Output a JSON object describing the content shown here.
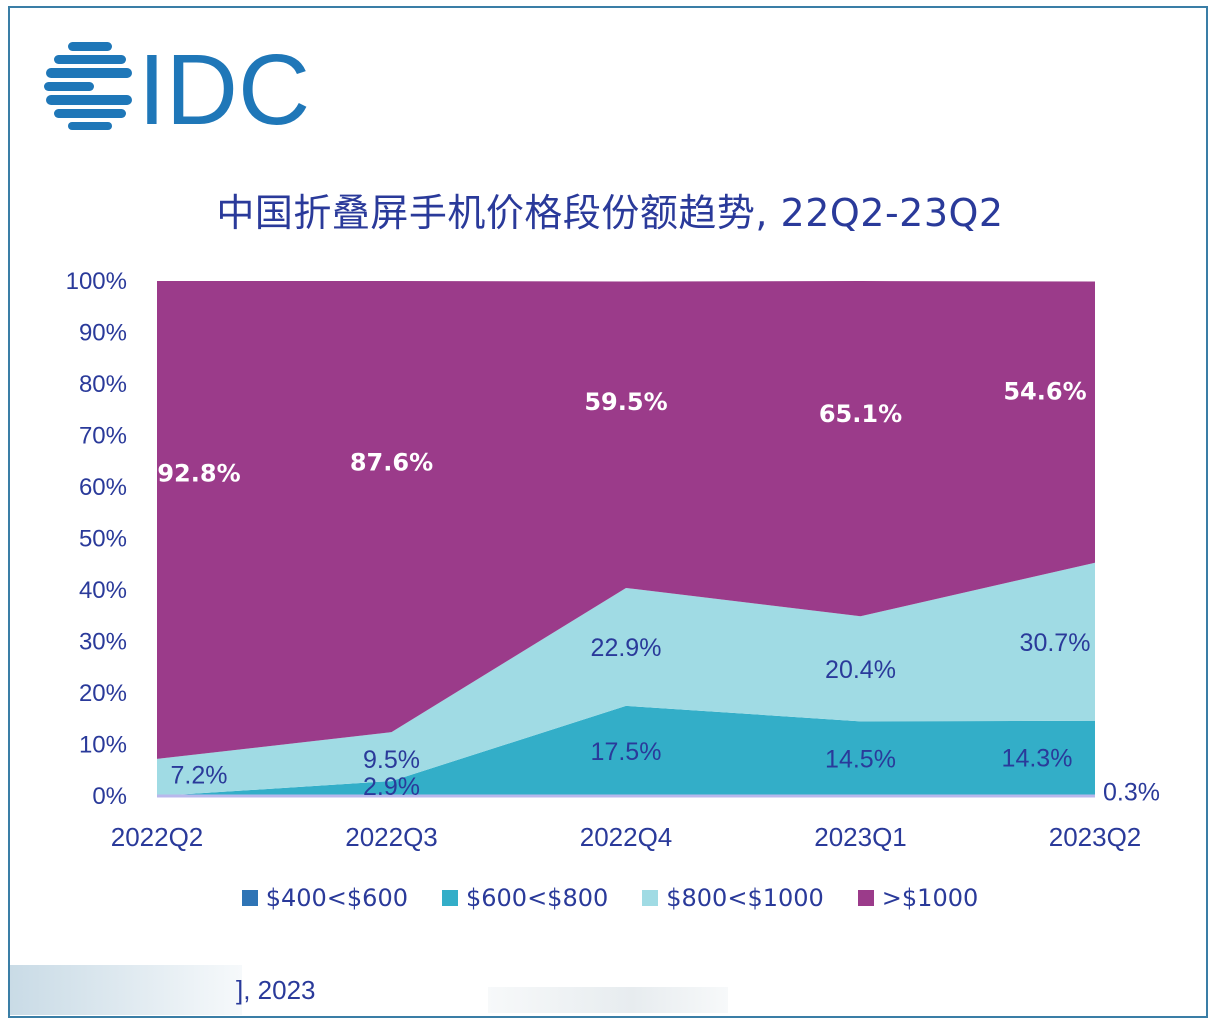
{
  "logo_text": "IDC",
  "source": {
    "text": "], 2023"
  },
  "colors": {
    "frame": "#3a7ea6",
    "logo": "#1f77b8",
    "title": "#2a3a9a",
    "s400_600": "#2e74b5",
    "s600_800": "#33aec8",
    "s800_1000": "#a0dbe4",
    "s1000": "#9b3b8a",
    "baseline": "#b8b8ec"
  },
  "chart_data": {
    "type": "area",
    "stacked": true,
    "title": "中国折叠屏手机价格段份额趋势, 22Q2-23Q2",
    "categories": [
      "2022Q2",
      "2022Q3",
      "2022Q4",
      "2023Q1",
      "2023Q2"
    ],
    "yticks": [
      "0%",
      "10%",
      "20%",
      "30%",
      "40%",
      "50%",
      "60%",
      "70%",
      "80%",
      "90%",
      "100%"
    ],
    "ylim": [
      0,
      100
    ],
    "legend_position": "bottom",
    "series": [
      {
        "name": "$400<$600",
        "color_key": "s400_600",
        "values": [
          0,
          0,
          0,
          0,
          0.3
        ],
        "labels": [
          "",
          "",
          "",
          "",
          "0.3%"
        ]
      },
      {
        "name": "$600<$800",
        "color_key": "s600_800",
        "values": [
          0,
          2.9,
          17.5,
          14.5,
          14.3
        ],
        "labels": [
          "",
          "2.9%",
          "17.5%",
          "14.5%",
          "14.3%"
        ]
      },
      {
        "name": "$800<$1000",
        "color_key": "s800_1000",
        "values": [
          7.2,
          9.5,
          22.9,
          20.4,
          30.7
        ],
        "labels": [
          "7.2%",
          "9.5%",
          "22.9%",
          "20.4%",
          "30.7%"
        ]
      },
      {
        "name": ">$1000",
        "color_key": "s1000",
        "values": [
          92.8,
          87.6,
          59.5,
          65.1,
          54.6
        ],
        "labels": [
          "92.8%",
          "87.6%",
          "59.5%",
          "65.1%",
          "54.6%"
        ]
      }
    ]
  }
}
